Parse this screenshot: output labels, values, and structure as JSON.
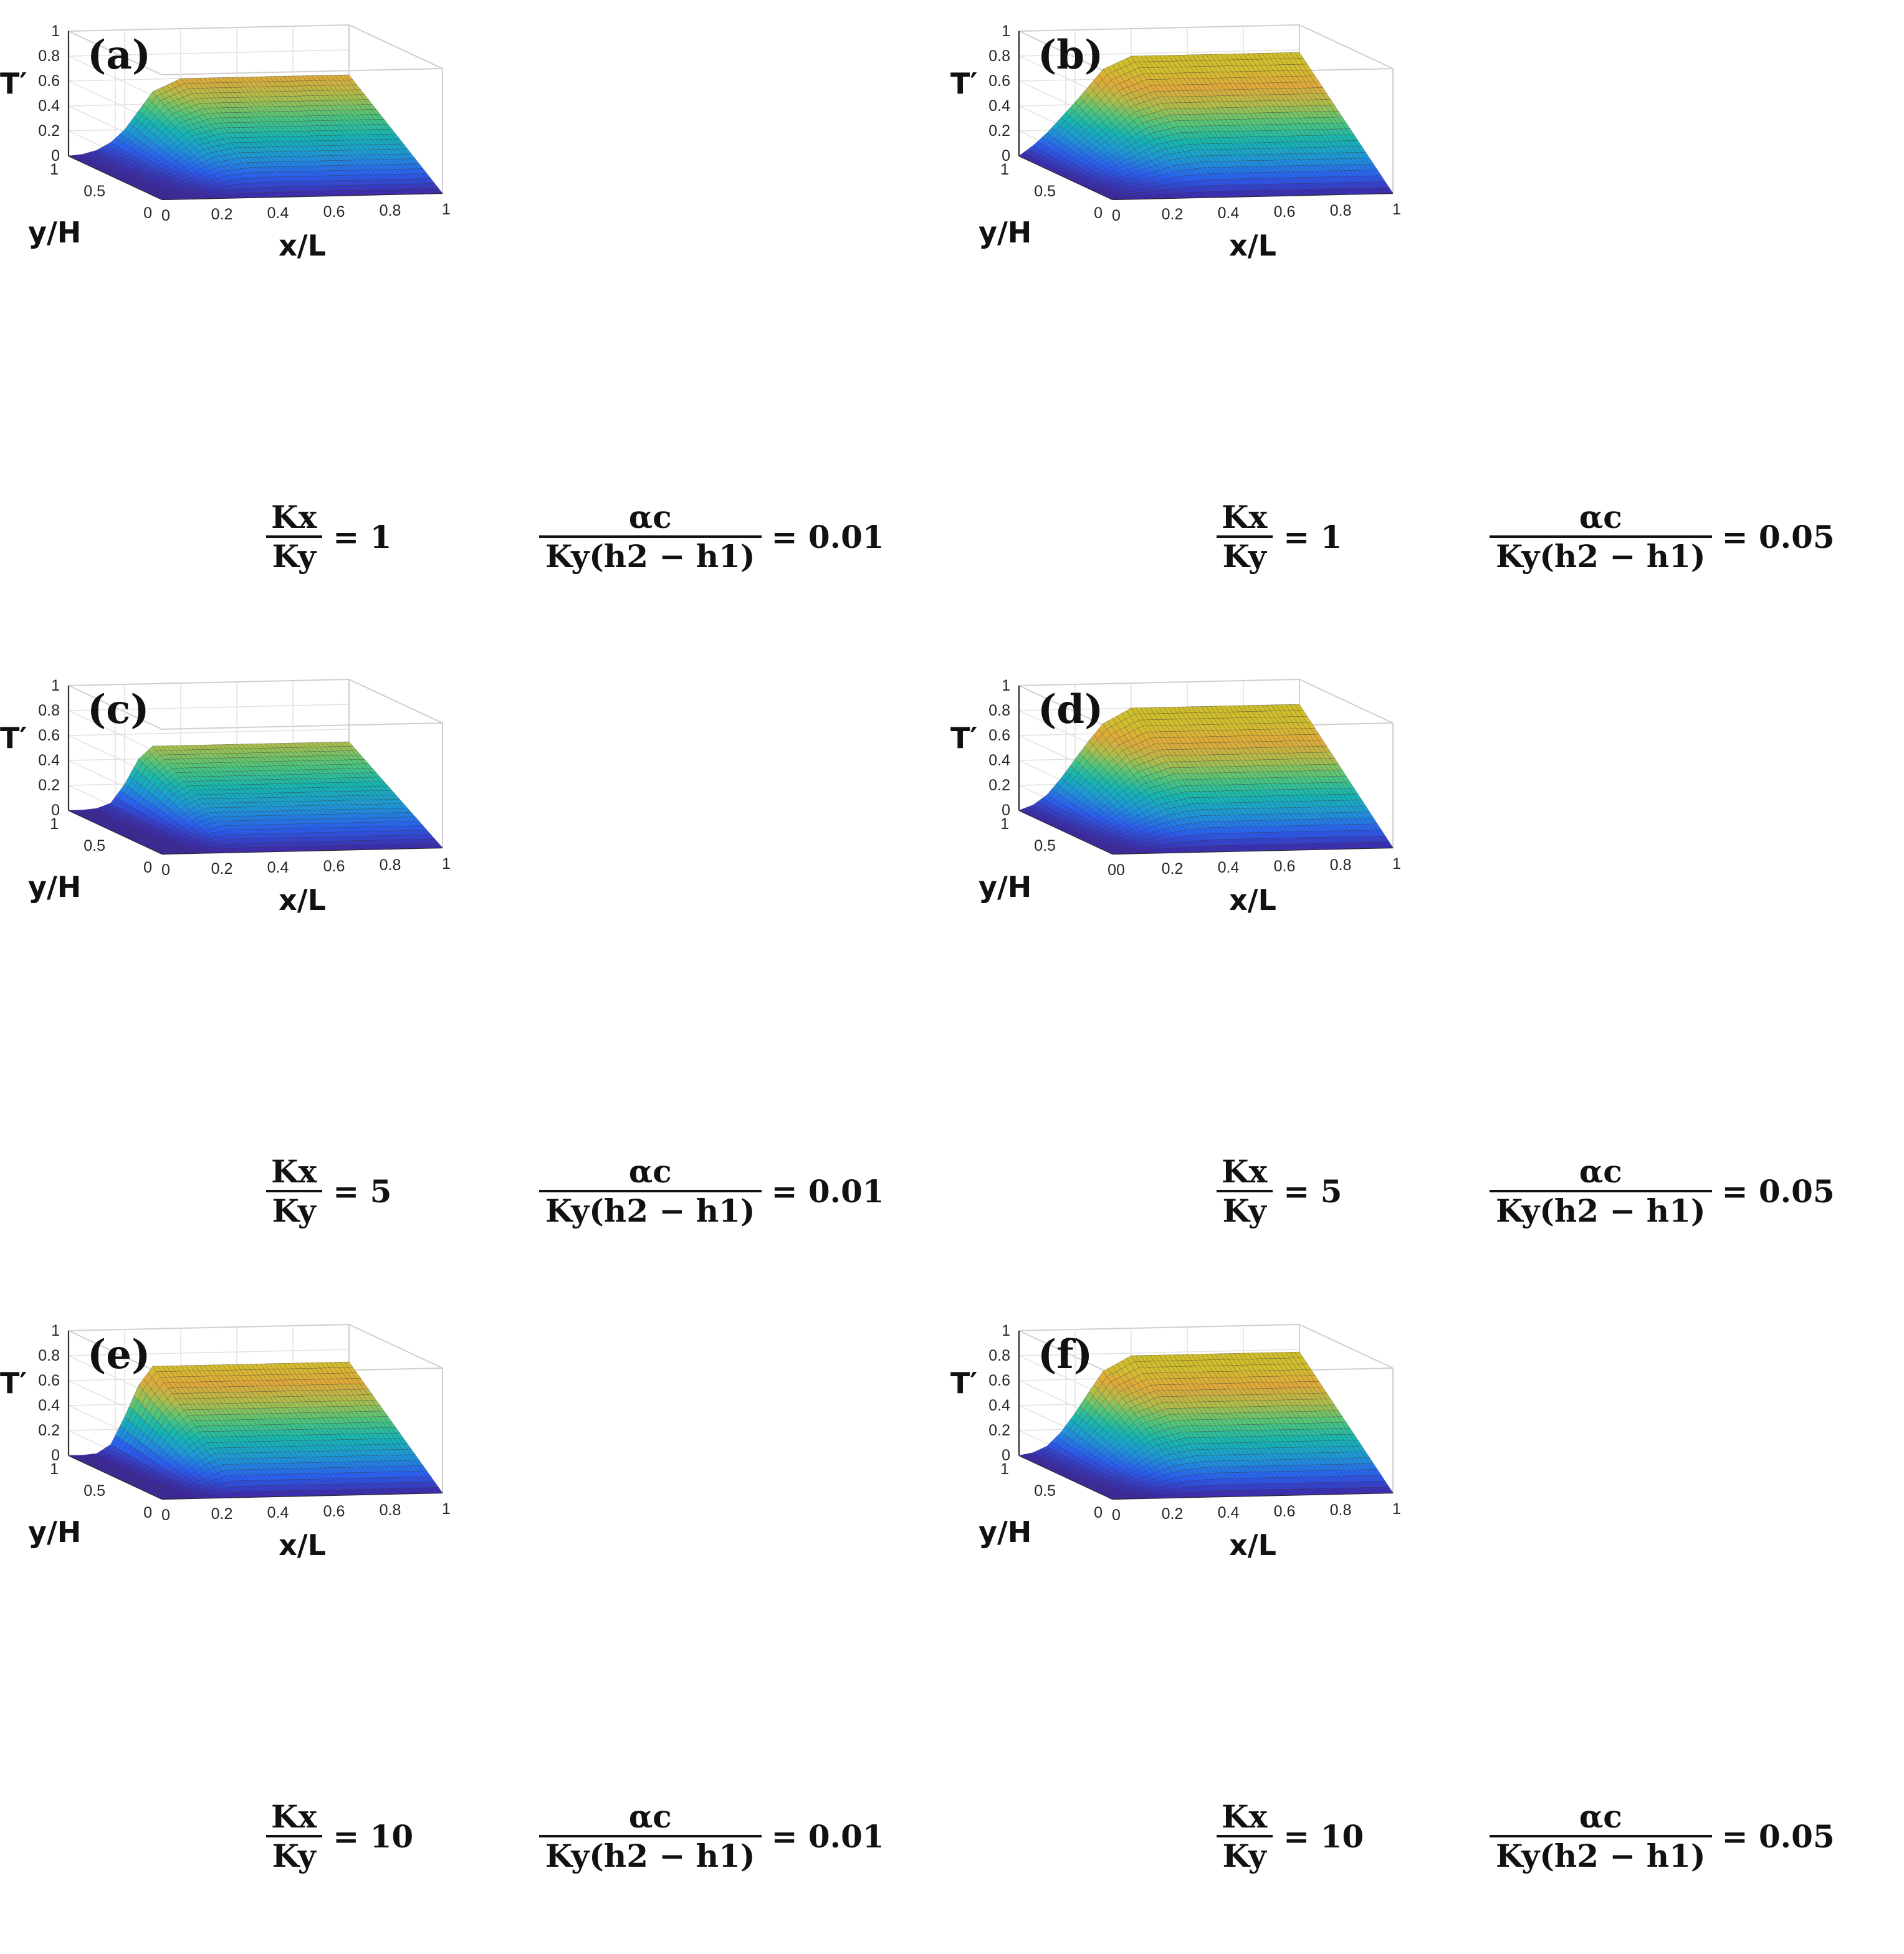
{
  "chart_data": [
    {
      "type": "surface",
      "panel": "(a)",
      "zlabel": "T′",
      "ylabel": "y/H",
      "xlabel": "x/L",
      "xticks": [
        "0",
        "0.2",
        "0.4",
        "0.6",
        "0.8",
        "1"
      ],
      "yticks": [
        "0",
        "0.5",
        "1"
      ],
      "zticks": [
        "0",
        "0.2",
        "0.4",
        "0.6",
        "0.8",
        "1"
      ],
      "xlim": [
        0,
        1
      ],
      "ylim": [
        0,
        1
      ],
      "zlim": [
        0,
        1
      ],
      "colormap": "parula",
      "surface_profile": {
        "x": [
          0,
          0.05,
          0.1,
          0.15,
          0.2,
          0.25,
          0.3,
          0.4,
          0.5,
          0.6,
          0.7,
          0.8,
          0.9,
          1
        ],
        "t_at_y1": [
          0,
          0.01,
          0.04,
          0.1,
          0.2,
          0.35,
          0.5,
          0.6,
          0.6,
          0.6,
          0.6,
          0.6,
          0.6,
          0.6
        ]
      },
      "kx_ky": {
        "lhs_num": "Kx",
        "lhs_den": "Ky",
        "rhs": "= 1"
      },
      "alpha": {
        "num": "αc",
        "den": "Ky(h2 − h1)",
        "rhs": "= 0.01"
      }
    },
    {
      "type": "surface",
      "panel": "(b)",
      "zlabel": "T′",
      "ylabel": "y/H",
      "xlabel": "x/L",
      "xticks": [
        "0",
        "0.2",
        "0.4",
        "0.6",
        "0.8",
        "1"
      ],
      "yticks": [
        "0",
        "0.5",
        "1"
      ],
      "zticks": [
        "0",
        "0.2",
        "0.4",
        "0.6",
        "0.8",
        "1"
      ],
      "xlim": [
        0,
        1
      ],
      "ylim": [
        0,
        1
      ],
      "zlim": [
        0,
        1
      ],
      "colormap": "parula",
      "surface_profile": {
        "x": [
          0,
          0.05,
          0.1,
          0.15,
          0.2,
          0.25,
          0.3,
          0.4,
          0.5,
          0.6,
          0.7,
          0.8,
          0.9,
          1
        ],
        "t_at_y1": [
          0,
          0.08,
          0.18,
          0.3,
          0.42,
          0.55,
          0.68,
          0.78,
          0.78,
          0.78,
          0.78,
          0.78,
          0.78,
          0.78
        ]
      },
      "kx_ky": {
        "lhs_num": "Kx",
        "lhs_den": "Ky",
        "rhs": "= 1"
      },
      "alpha": {
        "num": "αc",
        "den": "Ky(h2 − h1)",
        "rhs": "= 0.05"
      }
    },
    {
      "type": "surface",
      "panel": "(c)",
      "zlabel": "T′",
      "ylabel": "y/H",
      "xlabel": "x/L",
      "xticks": [
        "0",
        "0.2",
        "0.4",
        "0.6",
        "0.8",
        "1"
      ],
      "yticks": [
        "0",
        "0.5",
        "1"
      ],
      "zticks": [
        "0",
        "0.2",
        "0.4",
        "0.6",
        "0.8",
        "1"
      ],
      "xlim": [
        0,
        1
      ],
      "ylim": [
        0,
        1
      ],
      "zlim": [
        0,
        1
      ],
      "colormap": "parula",
      "surface_profile": {
        "x": [
          0,
          0.05,
          0.1,
          0.15,
          0.2,
          0.25,
          0.3,
          0.4,
          0.5,
          0.6,
          0.7,
          0.8,
          0.9,
          1
        ],
        "t_at_y1": [
          0,
          0,
          0.01,
          0.05,
          0.2,
          0.4,
          0.5,
          0.5,
          0.5,
          0.5,
          0.5,
          0.5,
          0.5,
          0.5
        ]
      },
      "kx_ky": {
        "lhs_num": "Kx",
        "lhs_den": "Ky",
        "rhs": "= 5"
      },
      "alpha": {
        "num": "αc",
        "den": "Ky(h2 − h1)",
        "rhs": "= 0.01"
      }
    },
    {
      "type": "surface",
      "panel": "(d)",
      "zlabel": "T′",
      "ylabel": "y/H",
      "xlabel": "x/L",
      "xticks": [
        "00",
        "0.2",
        "0.4",
        "0.6",
        "0.8",
        "1"
      ],
      "yticks": [
        "0.5",
        "1"
      ],
      "zticks": [
        "0",
        "0.2",
        "0.4",
        "0.6",
        "0.8",
        "1"
      ],
      "xlim": [
        0,
        1
      ],
      "ylim": [
        0,
        1
      ],
      "zlim": [
        0,
        1
      ],
      "colormap": "parula",
      "surface_profile": {
        "x": [
          0,
          0.05,
          0.1,
          0.15,
          0.2,
          0.25,
          0.3,
          0.4,
          0.5,
          0.6,
          0.7,
          0.8,
          0.9,
          1
        ],
        "t_at_y1": [
          0,
          0.04,
          0.12,
          0.25,
          0.4,
          0.55,
          0.68,
          0.8,
          0.8,
          0.8,
          0.8,
          0.8,
          0.8,
          0.8
        ]
      },
      "kx_ky": {
        "lhs_num": "Kx",
        "lhs_den": "Ky",
        "rhs": "= 5"
      },
      "alpha": {
        "num": "αc",
        "den": "Ky(h2 − h1)",
        "rhs": "= 0.05"
      }
    },
    {
      "type": "surface",
      "panel": "(e)",
      "zlabel": "T′",
      "ylabel": "y/H",
      "xlabel": "x/L",
      "xticks": [
        "0",
        "0.2",
        "0.4",
        "0.6",
        "0.8",
        "1"
      ],
      "yticks": [
        "0",
        "0.5",
        "1"
      ],
      "zticks": [
        "0",
        "0.2",
        "0.4",
        "0.6",
        "0.8",
        "1"
      ],
      "xlim": [
        0,
        1
      ],
      "ylim": [
        0,
        1
      ],
      "zlim": [
        0,
        1
      ],
      "colormap": "parula",
      "surface_profile": {
        "x": [
          0,
          0.05,
          0.1,
          0.15,
          0.2,
          0.25,
          0.3,
          0.4,
          0.5,
          0.6,
          0.7,
          0.8,
          0.9,
          1
        ],
        "t_at_y1": [
          0,
          0,
          0.01,
          0.08,
          0.3,
          0.55,
          0.7,
          0.7,
          0.7,
          0.7,
          0.7,
          0.7,
          0.7,
          0.7
        ]
      },
      "kx_ky": {
        "lhs_num": "Kx",
        "lhs_den": "Ky",
        "rhs": "= 10"
      },
      "alpha": {
        "num": "αc",
        "den": "Ky(h2 − h1)",
        "rhs": "= 0.01"
      }
    },
    {
      "type": "surface",
      "panel": "(f)",
      "zlabel": "T′",
      "ylabel": "y/H",
      "xlabel": "x/L",
      "xticks": [
        "0",
        "0.2",
        "0.4",
        "0.6",
        "0.8",
        "1"
      ],
      "yticks": [
        "0",
        "0.5",
        "1"
      ],
      "zticks": [
        "0",
        "0.2",
        "0.4",
        "0.6",
        "0.8",
        "1"
      ],
      "xlim": [
        0,
        1
      ],
      "ylim": [
        0,
        1
      ],
      "zlim": [
        0,
        1
      ],
      "colormap": "parula",
      "surface_profile": {
        "x": [
          0,
          0.05,
          0.1,
          0.15,
          0.2,
          0.25,
          0.3,
          0.4,
          0.5,
          0.6,
          0.7,
          0.8,
          0.9,
          1
        ],
        "t_at_y1": [
          0,
          0.02,
          0.07,
          0.18,
          0.33,
          0.5,
          0.66,
          0.78,
          0.78,
          0.78,
          0.78,
          0.78,
          0.78,
          0.78
        ]
      },
      "kx_ky": {
        "lhs_num": "Kx",
        "lhs_den": "Ky",
        "rhs": "= 10"
      },
      "alpha": {
        "num": "αc",
        "den": "Ky(h2 − h1)",
        "rhs": "= 0.05"
      }
    }
  ],
  "colors": {
    "colormap_stops": [
      "#3e26a8",
      "#2a5ef2",
      "#1e97d8",
      "#16b6b1",
      "#52c57a",
      "#b0bd4a",
      "#e0a93a",
      "#d2be2e",
      "#cdbd2b"
    ],
    "mesh_line": "#2a2a2a",
    "axis": "#2b2b2b",
    "box": "#cfcfcf"
  }
}
